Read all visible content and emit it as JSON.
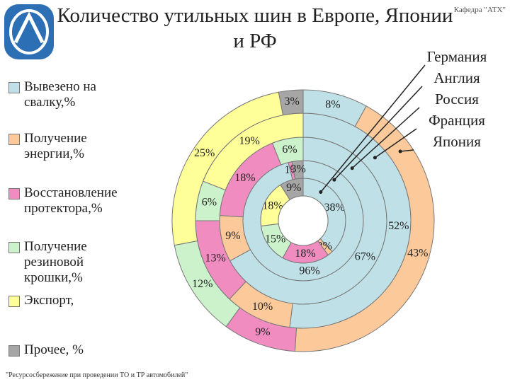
{
  "header_note": "Кафедра \"АТХ\"",
  "footer": "\"Ресурсосбережение при проведении ТО и ТР автомобилей\"",
  "chart_data": {
    "type": "donut",
    "title": "Количество утильных шин в Европе, Японии и РФ",
    "categories": [
      "Вывезено на свалку,%",
      "Получение энергии,%",
      "Восстановление протектора,%",
      "Получение резиновой крошки,%",
      "Экспорт,",
      "Прочее, %"
    ],
    "colors": [
      "#bfe0e6",
      "#fbc99a",
      "#f08cc0",
      "#ccf2cc",
      "#ffff99",
      "#a6a6a6"
    ],
    "series": [
      {
        "name": "Германия",
        "values": [
          38,
          2,
          18,
          15,
          18,
          9
        ],
        "value_labels": [
          "38%",
          "2%",
          "18%",
          "15%",
          "18%",
          "9%"
        ]
      },
      {
        "name": "Англия",
        "values": [
          96,
          0,
          1,
          0,
          0,
          3
        ],
        "value_labels": [
          "96%",
          null,
          "1%",
          null,
          null,
          "3%"
        ]
      },
      {
        "name": "Россия",
        "values": [
          67,
          9,
          18,
          6,
          0,
          0
        ],
        "value_labels": [
          "67%",
          "9%",
          "18%",
          "6%",
          null,
          null
        ]
      },
      {
        "name": "Франция",
        "values": [
          52,
          10,
          13,
          6,
          19,
          0
        ],
        "value_labels": [
          "52%",
          "10%",
          "13%",
          "6%",
          "19%",
          null
        ]
      },
      {
        "name": "Япония",
        "values": [
          8,
          43,
          9,
          12,
          25,
          3
        ],
        "value_labels": [
          "8%",
          "43%",
          "9%",
          "12%",
          "25%",
          "3%"
        ]
      }
    ]
  }
}
